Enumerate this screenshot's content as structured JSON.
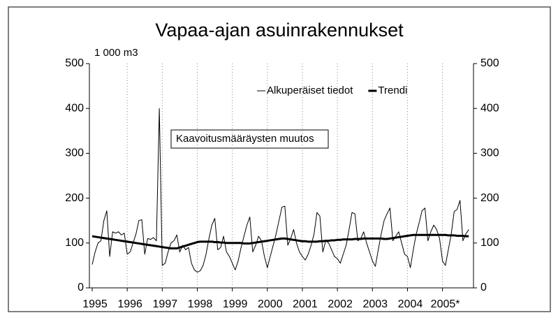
{
  "chart_data": {
    "type": "line",
    "title": "Vapaa-ajan asuinrakennukset",
    "y_unit_label": "1 000 m3",
    "annotation": "Kaavoitusmääräysten muutos",
    "legend": "upper right",
    "grid": "x",
    "categories": [
      "1995",
      null,
      null,
      null,
      null,
      null,
      null,
      null,
      null,
      null,
      null,
      null,
      "1996",
      null,
      null,
      null,
      null,
      null,
      null,
      null,
      null,
      null,
      null,
      null,
      "1997",
      null,
      null,
      null,
      null,
      null,
      null,
      null,
      null,
      null,
      null,
      null,
      "1998",
      null,
      null,
      null,
      null,
      null,
      null,
      null,
      null,
      null,
      null,
      null,
      "1999",
      null,
      null,
      null,
      null,
      null,
      null,
      null,
      null,
      null,
      null,
      null,
      "2000",
      null,
      null,
      null,
      null,
      null,
      null,
      null,
      null,
      null,
      null,
      null,
      "2001",
      null,
      null,
      null,
      null,
      null,
      null,
      null,
      null,
      null,
      null,
      null,
      "2002",
      null,
      null,
      null,
      null,
      null,
      null,
      null,
      null,
      null,
      null,
      null,
      "2003",
      null,
      null,
      null,
      null,
      null,
      null,
      null,
      null,
      null,
      null,
      null,
      "2004",
      null,
      null,
      null,
      null,
      null,
      null,
      null,
      null,
      null,
      null,
      null,
      "2005*",
      null,
      null,
      null,
      null,
      null,
      null,
      null,
      null,
      null
    ],
    "series": [
      {
        "name": "Alkuperäiset tiedot",
        "color": "#000000",
        "linewidth": 1,
        "values": [
          52,
          80,
          100,
          105,
          150,
          172,
          70,
          125,
          122,
          125,
          118,
          122,
          75,
          80,
          100,
          120,
          150,
          152,
          75,
          110,
          108,
          112,
          105,
          400,
          50,
          55,
          80,
          100,
          105,
          118,
          80,
          95,
          85,
          90,
          55,
          40,
          35,
          38,
          50,
          75,
          110,
          140,
          155,
          85,
          90,
          115,
          80,
          70,
          55,
          40,
          60,
          90,
          115,
          140,
          158,
          80,
          95,
          115,
          105,
          70,
          45,
          70,
          95,
          120,
          150,
          180,
          182,
          95,
          110,
          130,
          100,
          80,
          70,
          62,
          75,
          95,
          120,
          168,
          160,
          80,
          105,
          100,
          85,
          70,
          65,
          55,
          75,
          95,
          130,
          168,
          165,
          105,
          110,
          125,
          100,
          80,
          60,
          48,
          85,
          120,
          150,
          165,
          178,
          105,
          115,
          125,
          100,
          75,
          70,
          45,
          85,
          120,
          145,
          172,
          178,
          105,
          125,
          140,
          130,
          110,
          60,
          50,
          85,
          120,
          170,
          175,
          195,
          105,
          120,
          130
        ]
      },
      {
        "name": "Trendi",
        "color": "#000000",
        "linewidth": 3,
        "values": [
          115,
          114,
          113,
          112,
          111,
          110,
          109,
          108,
          107,
          106,
          105,
          104,
          103,
          102,
          101,
          100,
          99,
          98,
          97,
          96,
          95,
          94,
          93,
          92,
          91,
          90,
          89,
          88,
          88,
          88,
          90,
          92,
          94,
          96,
          98,
          100,
          102,
          103,
          103,
          103,
          103,
          103,
          102,
          102,
          101,
          101,
          100,
          100,
          100,
          100,
          100,
          100,
          99,
          99,
          99,
          100,
          101,
          102,
          103,
          104,
          105,
          106,
          107,
          108,
          109,
          110,
          110,
          109,
          108,
          107,
          106,
          105,
          104,
          104,
          103,
          103,
          103,
          103,
          104,
          104,
          105,
          105,
          106,
          106,
          107,
          107,
          108,
          108,
          108,
          108,
          109,
          109,
          109,
          110,
          110,
          110,
          110,
          110,
          110,
          110,
          109,
          109,
          110,
          111,
          112,
          113,
          114,
          115,
          116,
          117,
          118,
          118,
          118,
          118,
          118,
          118,
          118,
          118,
          118,
          118,
          118,
          118,
          117,
          117,
          117,
          116,
          116,
          116,
          115,
          115
        ]
      }
    ],
    "ylim": [
      0,
      500
    ],
    "yticks": [
      0,
      100,
      200,
      300,
      400,
      500
    ],
    "y2lim": [
      0,
      500
    ],
    "y2ticks": [
      0,
      100,
      200,
      300,
      400,
      500
    ]
  }
}
